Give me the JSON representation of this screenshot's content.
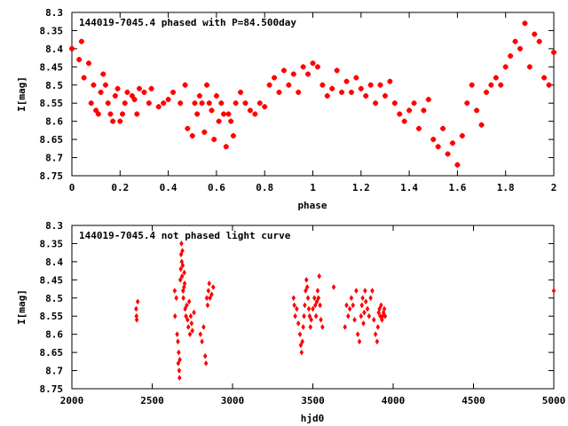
{
  "chart_data": [
    {
      "type": "scatter",
      "title": "144019-7045.4 phased with P=84.500day",
      "xlabel": "phase",
      "ylabel": "I[mag]",
      "xlim": [
        0,
        2
      ],
      "ylim": [
        8.75,
        8.3
      ],
      "y_inverted": true,
      "grid": false,
      "legend": "none",
      "marker_color": "#ff0000",
      "xticks": [
        "0",
        "0.2",
        "0.4",
        "0.6",
        "0.8",
        "1",
        "1.2",
        "1.4",
        "1.6",
        "1.8",
        "2"
      ],
      "xtick_values": [
        0,
        0.2,
        0.4,
        0.6,
        0.8,
        1.0,
        1.2,
        1.4,
        1.6,
        1.8,
        2.0
      ],
      "yticks": [
        "8.3",
        "8.35",
        "8.4",
        "8.45",
        "8.5",
        "8.55",
        "8.6",
        "8.65",
        "8.7",
        "8.75"
      ],
      "ytick_values": [
        8.3,
        8.35,
        8.4,
        8.45,
        8.5,
        8.55,
        8.6,
        8.65,
        8.7,
        8.75
      ],
      "points": [
        [
          0.0,
          8.4
        ],
        [
          0.03,
          8.43
        ],
        [
          0.04,
          8.38
        ],
        [
          0.05,
          8.48
        ],
        [
          0.07,
          8.44
        ],
        [
          0.08,
          8.55
        ],
        [
          0.09,
          8.5
        ],
        [
          0.1,
          8.57
        ],
        [
          0.11,
          8.58
        ],
        [
          0.12,
          8.52
        ],
        [
          0.13,
          8.47
        ],
        [
          0.14,
          8.5
        ],
        [
          0.15,
          8.55
        ],
        [
          0.16,
          8.58
        ],
        [
          0.17,
          8.6
        ],
        [
          0.18,
          8.53
        ],
        [
          0.19,
          8.51
        ],
        [
          0.2,
          8.6
        ],
        [
          0.21,
          8.58
        ],
        [
          0.22,
          8.55
        ],
        [
          0.23,
          8.52
        ],
        [
          0.25,
          8.53
        ],
        [
          0.26,
          8.54
        ],
        [
          0.27,
          8.58
        ],
        [
          0.28,
          8.51
        ],
        [
          0.3,
          8.52
        ],
        [
          0.32,
          8.55
        ],
        [
          0.33,
          8.51
        ],
        [
          0.36,
          8.56
        ],
        [
          0.38,
          8.55
        ],
        [
          0.4,
          8.54
        ],
        [
          0.42,
          8.52
        ],
        [
          0.45,
          8.55
        ],
        [
          0.47,
          8.5
        ],
        [
          0.48,
          8.62
        ],
        [
          0.5,
          8.64
        ],
        [
          0.51,
          8.55
        ],
        [
          0.52,
          8.58
        ],
        [
          0.53,
          8.53
        ],
        [
          0.54,
          8.55
        ],
        [
          0.55,
          8.63
        ],
        [
          0.56,
          8.5
        ],
        [
          0.57,
          8.55
        ],
        [
          0.58,
          8.57
        ],
        [
          0.59,
          8.65
        ],
        [
          0.6,
          8.53
        ],
        [
          0.61,
          8.6
        ],
        [
          0.62,
          8.55
        ],
        [
          0.63,
          8.58
        ],
        [
          0.64,
          8.67
        ],
        [
          0.65,
          8.58
        ],
        [
          0.66,
          8.6
        ],
        [
          0.67,
          8.64
        ],
        [
          0.68,
          8.55
        ],
        [
          0.7,
          8.52
        ],
        [
          0.72,
          8.55
        ],
        [
          0.74,
          8.57
        ],
        [
          0.76,
          8.58
        ],
        [
          0.78,
          8.55
        ],
        [
          0.8,
          8.56
        ],
        [
          0.82,
          8.5
        ],
        [
          0.84,
          8.48
        ],
        [
          0.86,
          8.52
        ],
        [
          0.88,
          8.46
        ],
        [
          0.9,
          8.5
        ],
        [
          0.92,
          8.47
        ],
        [
          0.94,
          8.52
        ],
        [
          0.96,
          8.45
        ],
        [
          0.98,
          8.47
        ],
        [
          1.0,
          8.44
        ],
        [
          1.02,
          8.45
        ],
        [
          1.04,
          8.5
        ],
        [
          1.06,
          8.53
        ],
        [
          1.08,
          8.51
        ],
        [
          1.1,
          8.46
        ],
        [
          1.12,
          8.52
        ],
        [
          1.14,
          8.49
        ],
        [
          1.16,
          8.52
        ],
        [
          1.18,
          8.48
        ],
        [
          1.2,
          8.51
        ],
        [
          1.22,
          8.53
        ],
        [
          1.24,
          8.5
        ],
        [
          1.26,
          8.55
        ],
        [
          1.28,
          8.5
        ],
        [
          1.3,
          8.53
        ],
        [
          1.32,
          8.49
        ],
        [
          1.34,
          8.55
        ],
        [
          1.36,
          8.58
        ],
        [
          1.38,
          8.6
        ],
        [
          1.4,
          8.57
        ],
        [
          1.42,
          8.55
        ],
        [
          1.44,
          8.62
        ],
        [
          1.46,
          8.57
        ],
        [
          1.48,
          8.54
        ],
        [
          1.5,
          8.65
        ],
        [
          1.52,
          8.67
        ],
        [
          1.54,
          8.62
        ],
        [
          1.56,
          8.69
        ],
        [
          1.58,
          8.66
        ],
        [
          1.6,
          8.72
        ],
        [
          1.62,
          8.64
        ],
        [
          1.64,
          8.55
        ],
        [
          1.66,
          8.5
        ],
        [
          1.68,
          8.57
        ],
        [
          1.7,
          8.61
        ],
        [
          1.72,
          8.52
        ],
        [
          1.74,
          8.5
        ],
        [
          1.76,
          8.48
        ],
        [
          1.78,
          8.5
        ],
        [
          1.8,
          8.45
        ],
        [
          1.82,
          8.42
        ],
        [
          1.84,
          8.38
        ],
        [
          1.86,
          8.4
        ],
        [
          1.88,
          8.33
        ],
        [
          1.9,
          8.45
        ],
        [
          1.92,
          8.36
        ],
        [
          1.94,
          8.38
        ],
        [
          1.96,
          8.48
        ],
        [
          1.98,
          8.5
        ],
        [
          2.0,
          8.41
        ]
      ]
    },
    {
      "type": "scatter",
      "title": "144019-7045.4 not phased light curve",
      "xlabel": "hjd0",
      "ylabel": "I[mag]",
      "xlim": [
        2000,
        5000
      ],
      "ylim": [
        8.75,
        8.3
      ],
      "y_inverted": true,
      "grid": false,
      "legend": "none",
      "marker_color": "#ff0000",
      "xticks": [
        "2000",
        "2500",
        "3000",
        "3500",
        "4000",
        "4500",
        "5000"
      ],
      "xtick_values": [
        2000,
        2500,
        3000,
        3500,
        4000,
        4500,
        5000
      ],
      "yticks": [
        "8.3",
        "8.35",
        "8.4",
        "8.45",
        "8.5",
        "8.55",
        "8.6",
        "8.65",
        "8.7",
        "8.75"
      ],
      "ytick_values": [
        8.3,
        8.35,
        8.4,
        8.45,
        8.5,
        8.55,
        8.6,
        8.65,
        8.7,
        8.75
      ],
      "points": [
        [
          2400,
          8.53
        ],
        [
          2402,
          8.55
        ],
        [
          2404,
          8.56
        ],
        [
          2410,
          8.51
        ],
        [
          2640,
          8.48
        ],
        [
          2642,
          8.55
        ],
        [
          2650,
          8.5
        ],
        [
          2655,
          8.6
        ],
        [
          2660,
          8.62
        ],
        [
          2662,
          8.68
        ],
        [
          2665,
          8.65
        ],
        [
          2668,
          8.7
        ],
        [
          2670,
          8.72
        ],
        [
          2672,
          8.67
        ],
        [
          2675,
          8.45
        ],
        [
          2678,
          8.42
        ],
        [
          2680,
          8.38
        ],
        [
          2682,
          8.35
        ],
        [
          2684,
          8.4
        ],
        [
          2686,
          8.44
        ],
        [
          2688,
          8.37
        ],
        [
          2690,
          8.41
        ],
        [
          2692,
          8.48
        ],
        [
          2694,
          8.5
        ],
        [
          2698,
          8.47
        ],
        [
          2700,
          8.43
        ],
        [
          2702,
          8.46
        ],
        [
          2705,
          8.53
        ],
        [
          2710,
          8.55
        ],
        [
          2715,
          8.52
        ],
        [
          2720,
          8.56
        ],
        [
          2725,
          8.58
        ],
        [
          2730,
          8.51
        ],
        [
          2735,
          8.6
        ],
        [
          2740,
          8.55
        ],
        [
          2745,
          8.57
        ],
        [
          2750,
          8.59
        ],
        [
          2760,
          8.54
        ],
        [
          2800,
          8.6
        ],
        [
          2810,
          8.62
        ],
        [
          2820,
          8.58
        ],
        [
          2830,
          8.66
        ],
        [
          2835,
          8.68
        ],
        [
          2840,
          8.5
        ],
        [
          2845,
          8.52
        ],
        [
          2850,
          8.48
        ],
        [
          2855,
          8.46
        ],
        [
          2860,
          8.5
        ],
        [
          2870,
          8.49
        ],
        [
          2880,
          8.47
        ],
        [
          3380,
          8.5
        ],
        [
          3385,
          8.52
        ],
        [
          3390,
          8.55
        ],
        [
          3400,
          8.53
        ],
        [
          3410,
          8.57
        ],
        [
          3420,
          8.6
        ],
        [
          3425,
          8.63
        ],
        [
          3430,
          8.65
        ],
        [
          3435,
          8.62
        ],
        [
          3440,
          8.58
        ],
        [
          3445,
          8.55
        ],
        [
          3450,
          8.52
        ],
        [
          3455,
          8.48
        ],
        [
          3460,
          8.45
        ],
        [
          3465,
          8.47
        ],
        [
          3470,
          8.5
        ],
        [
          3475,
          8.53
        ],
        [
          3480,
          8.55
        ],
        [
          3485,
          8.58
        ],
        [
          3490,
          8.56
        ],
        [
          3500,
          8.53
        ],
        [
          3510,
          8.5
        ],
        [
          3515,
          8.52
        ],
        [
          3520,
          8.55
        ],
        [
          3525,
          8.51
        ],
        [
          3530,
          8.48
        ],
        [
          3535,
          8.5
        ],
        [
          3540,
          8.44
        ],
        [
          3545,
          8.52
        ],
        [
          3550,
          8.56
        ],
        [
          3560,
          8.58
        ],
        [
          3630,
          8.47
        ],
        [
          3700,
          8.58
        ],
        [
          3710,
          8.52
        ],
        [
          3720,
          8.55
        ],
        [
          3730,
          8.53
        ],
        [
          3740,
          8.5
        ],
        [
          3750,
          8.52
        ],
        [
          3760,
          8.56
        ],
        [
          3770,
          8.48
        ],
        [
          3780,
          8.6
        ],
        [
          3790,
          8.62
        ],
        [
          3800,
          8.55
        ],
        [
          3805,
          8.52
        ],
        [
          3810,
          8.5
        ],
        [
          3815,
          8.57
        ],
        [
          3820,
          8.54
        ],
        [
          3825,
          8.48
        ],
        [
          3830,
          8.51
        ],
        [
          3840,
          8.53
        ],
        [
          3850,
          8.55
        ],
        [
          3860,
          8.5
        ],
        [
          3870,
          8.48
        ],
        [
          3880,
          8.56
        ],
        [
          3890,
          8.6
        ],
        [
          3900,
          8.62
        ],
        [
          3905,
          8.58
        ],
        [
          3910,
          8.54
        ],
        [
          3915,
          8.53
        ],
        [
          3920,
          8.55
        ],
        [
          3925,
          8.52
        ],
        [
          3930,
          8.56
        ],
        [
          3935,
          8.55
        ],
        [
          3940,
          8.54
        ],
        [
          3945,
          8.53
        ],
        [
          3950,
          8.55
        ],
        [
          5000,
          8.48
        ]
      ]
    }
  ]
}
